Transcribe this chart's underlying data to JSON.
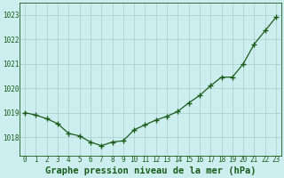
{
  "x": [
    0,
    1,
    2,
    3,
    4,
    5,
    6,
    7,
    8,
    9,
    10,
    11,
    12,
    13,
    14,
    15,
    16,
    17,
    18,
    19,
    20,
    21,
    22,
    23
  ],
  "y": [
    1019.0,
    1018.9,
    1018.75,
    1018.55,
    1018.15,
    1018.05,
    1017.8,
    1017.65,
    1017.8,
    1017.85,
    1018.3,
    1018.5,
    1018.7,
    1018.85,
    1019.05,
    1019.4,
    1019.7,
    1020.1,
    1020.45,
    1020.45,
    1021.0,
    1021.8,
    1022.35,
    1022.9
  ],
  "line_color": "#1a5c1a",
  "marker_color": "#1a5c1a",
  "bg_color": "#cceeee",
  "grid_color": "#aacccc",
  "title": "Graphe pression niveau de la mer (hPa)",
  "ylim_min": 1017.25,
  "ylim_max": 1023.5,
  "yticks": [
    1018,
    1019,
    1020,
    1021,
    1022,
    1023
  ],
  "xticks": [
    0,
    1,
    2,
    3,
    4,
    5,
    6,
    7,
    8,
    9,
    10,
    11,
    12,
    13,
    14,
    15,
    16,
    17,
    18,
    19,
    20,
    21,
    22,
    23
  ],
  "tick_color": "#1a5c1a",
  "title_fontsize": 7.5,
  "tick_fontsize": 5.5,
  "marker_size": 4,
  "line_width": 0.9
}
